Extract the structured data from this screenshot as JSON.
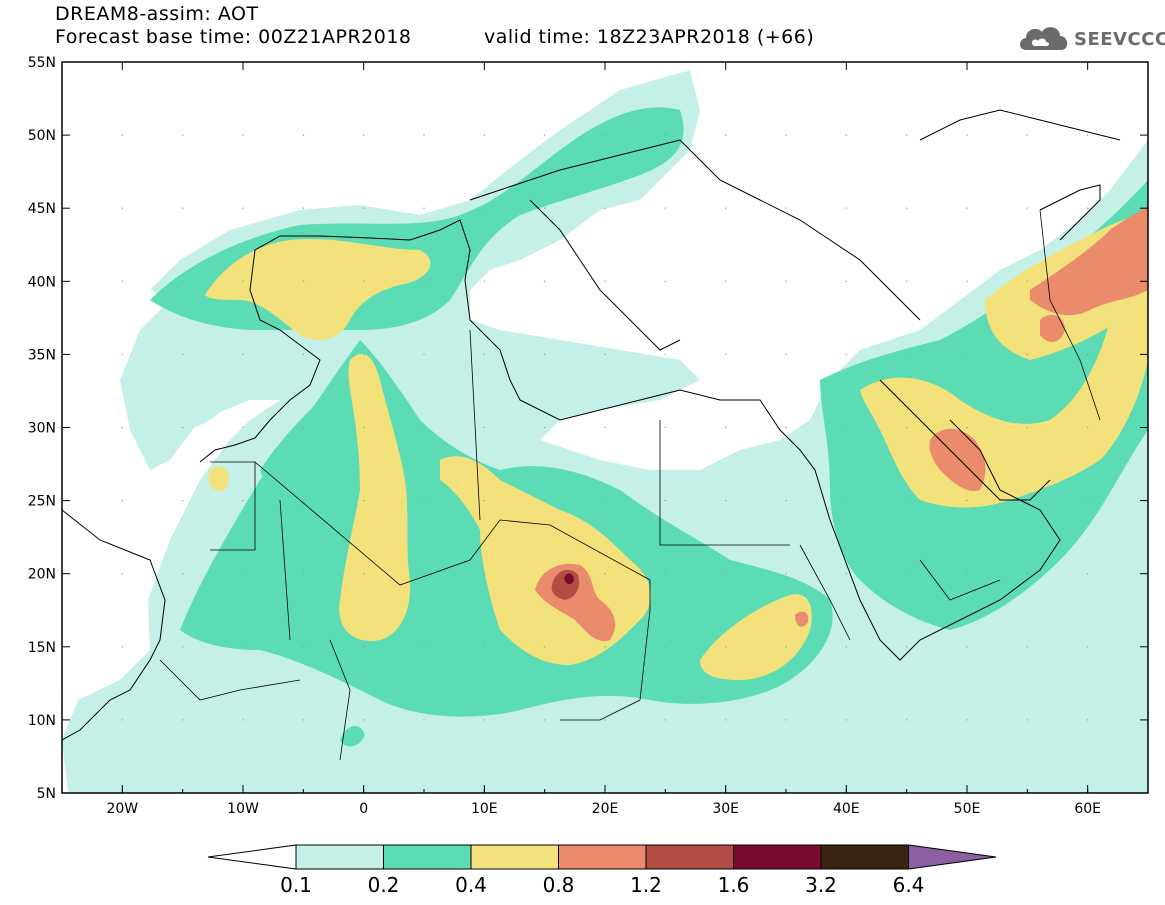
{
  "header": {
    "line1": "DREAM8-assim: AOT",
    "base": "Forecast base time: 00Z21APR2018",
    "valid": "valid time: 18Z23APR2018 (+66)"
  },
  "logo": {
    "text": "SEEVCCC",
    "icon": "cloud-icon"
  },
  "map": {
    "lon_range": [
      -25,
      65
    ],
    "lat_range": [
      5,
      55
    ],
    "lat_ticks": [
      "5N",
      "10N",
      "15N",
      "20N",
      "25N",
      "30N",
      "35N",
      "40N",
      "45N",
      "50N",
      "55N"
    ],
    "lon_ticks": [
      "20W",
      "10W",
      "0",
      "10E",
      "20E",
      "30E",
      "40E",
      "50E",
      "60E"
    ]
  },
  "colorbar": {
    "labels": [
      "0.1",
      "0.2",
      "0.4",
      "0.8",
      "1.2",
      "1.6",
      "3.2",
      "6.4"
    ],
    "colors": [
      "#c4f0e8",
      "#5cdcb4",
      "#f3e27c",
      "#ea8c6c",
      "#b34d44",
      "#7b0a30",
      "#3a2412",
      "#8c60a0"
    ]
  }
}
